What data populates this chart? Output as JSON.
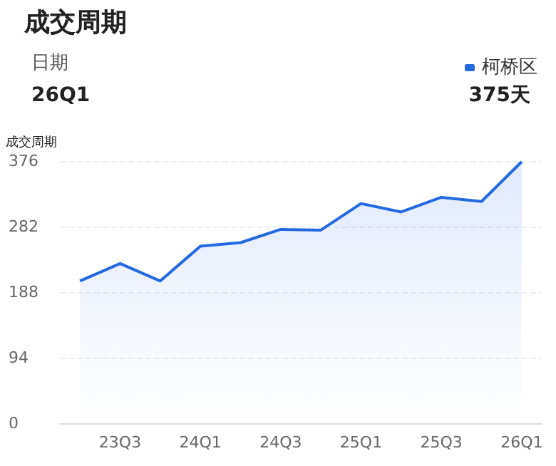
{
  "chart_data": {
    "type": "area",
    "title": "成交周期",
    "ylabel": "成交周期",
    "annotations": [
      "日期",
      "26Q1",
      "375天"
    ],
    "categories": [
      null,
      "23Q3",
      null,
      "24Q1",
      null,
      "24Q3",
      null,
      "25Q1",
      null,
      "25Q3",
      null,
      "26Q1"
    ],
    "series": [
      {
        "name": "柯桥区",
        "color": "#2469e0",
        "values": [
          204,
          229,
          204,
          254,
          259,
          278,
          277,
          315,
          303,
          324,
          318,
          375
        ]
      }
    ],
    "ylim": [
      0,
      376
    ],
    "yticks": [
      0,
      94,
      188,
      282,
      376
    ],
    "grid": "y",
    "legend": "top right",
    "marker": "none",
    "line_style": "solid"
  }
}
